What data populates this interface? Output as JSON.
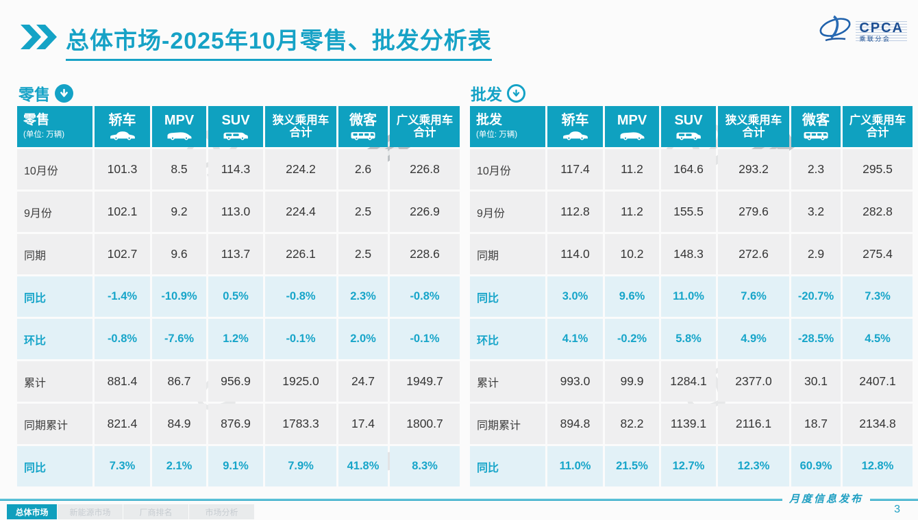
{
  "page": {
    "title": "总体市场-2025年10月零售、批发分析表"
  },
  "logo": {
    "name": "CPCA",
    "subtitle": "乘联分会",
    "emblem": "cpca-swirl-icon"
  },
  "colors": {
    "accent": "#14a2c6",
    "header_bg": "#0fa1c0",
    "percent_bg": "#e2f1f7",
    "row_bg": "#efeff0",
    "brand_blue": "#1d4f93"
  },
  "tables": [
    {
      "section_title": "零售",
      "section_icon": "circle-down-arrow-icon",
      "corner": {
        "title": "零售",
        "unit": "(单位: 万辆)"
      },
      "columns": [
        {
          "label": "轿车",
          "label2": "",
          "icon": "sedan-icon"
        },
        {
          "label": "MPV",
          "label2": "",
          "icon": "mpv-icon"
        },
        {
          "label": "SUV",
          "label2": "",
          "icon": "suv-icon"
        },
        {
          "label": "狭义乘用车",
          "label2": "合计",
          "icon": ""
        },
        {
          "label": "微客",
          "label2": "",
          "icon": "microvan-icon"
        },
        {
          "label": "广义乘用车",
          "label2": "合计",
          "icon": ""
        }
      ],
      "rows": [
        {
          "label": "10月份",
          "type": "normal",
          "cells": [
            "101.3",
            "8.5",
            "114.3",
            "224.2",
            "2.6",
            "226.8"
          ]
        },
        {
          "label": "9月份",
          "type": "normal",
          "cells": [
            "102.1",
            "9.2",
            "113.0",
            "224.4",
            "2.5",
            "226.9"
          ]
        },
        {
          "label": "同期",
          "type": "normal",
          "cells": [
            "102.7",
            "9.6",
            "113.7",
            "226.1",
            "2.5",
            "228.6"
          ]
        },
        {
          "label": "同比",
          "type": "percent",
          "cells": [
            "-1.4%",
            "-10.9%",
            "0.5%",
            "-0.8%",
            "2.3%",
            "-0.8%"
          ]
        },
        {
          "label": "环比",
          "type": "percent",
          "cells": [
            "-0.8%",
            "-7.6%",
            "1.2%",
            "-0.1%",
            "2.0%",
            "-0.1%"
          ]
        },
        {
          "label": "累计",
          "type": "normal",
          "cells": [
            "881.4",
            "86.7",
            "956.9",
            "1925.0",
            "24.7",
            "1949.7"
          ]
        },
        {
          "label": "同期累计",
          "type": "normal",
          "cells": [
            "821.4",
            "84.9",
            "876.9",
            "1783.3",
            "17.4",
            "1800.7"
          ]
        },
        {
          "label": "同比",
          "type": "percent",
          "cells": [
            "7.3%",
            "2.1%",
            "9.1%",
            "7.9%",
            "41.8%",
            "8.3%"
          ]
        }
      ]
    },
    {
      "section_title": "批发",
      "section_icon": "circle-down-arrow-icon",
      "corner": {
        "title": "批发",
        "unit": "(单位: 万辆)"
      },
      "columns": [
        {
          "label": "轿车",
          "label2": "",
          "icon": "sedan-icon"
        },
        {
          "label": "MPV",
          "label2": "",
          "icon": "mpv-icon"
        },
        {
          "label": "SUV",
          "label2": "",
          "icon": "suv-icon"
        },
        {
          "label": "狭义乘用车",
          "label2": "合计",
          "icon": ""
        },
        {
          "label": "微客",
          "label2": "",
          "icon": "microvan-icon"
        },
        {
          "label": "广义乘用车",
          "label2": "合计",
          "icon": ""
        }
      ],
      "rows": [
        {
          "label": "10月份",
          "type": "normal",
          "cells": [
            "117.4",
            "11.2",
            "164.6",
            "293.2",
            "2.3",
            "295.5"
          ]
        },
        {
          "label": "9月份",
          "type": "normal",
          "cells": [
            "112.8",
            "11.2",
            "155.5",
            "279.6",
            "3.2",
            "282.8"
          ]
        },
        {
          "label": "同期",
          "type": "normal",
          "cells": [
            "114.0",
            "10.2",
            "148.3",
            "272.6",
            "2.9",
            "275.4"
          ]
        },
        {
          "label": "同比",
          "type": "percent",
          "cells": [
            "3.0%",
            "9.6%",
            "11.0%",
            "7.6%",
            "-20.7%",
            "7.3%"
          ]
        },
        {
          "label": "环比",
          "type": "percent",
          "cells": [
            "4.1%",
            "-0.2%",
            "5.8%",
            "4.9%",
            "-28.5%",
            "4.5%"
          ]
        },
        {
          "label": "累计",
          "type": "normal",
          "cells": [
            "993.0",
            "99.9",
            "1284.1",
            "2377.0",
            "30.1",
            "2407.1"
          ]
        },
        {
          "label": "同期累计",
          "type": "normal",
          "cells": [
            "894.8",
            "82.2",
            "1139.1",
            "2116.1",
            "18.7",
            "2134.8"
          ]
        },
        {
          "label": "同比",
          "type": "percent",
          "cells": [
            "11.0%",
            "21.5%",
            "12.7%",
            "12.3%",
            "60.9%",
            "12.8%"
          ]
        }
      ]
    }
  ],
  "footer": {
    "tabs": [
      {
        "label": "总体市场",
        "active": true
      },
      {
        "label": "新能源市场",
        "active": false
      },
      {
        "label": "厂商排名",
        "active": false
      },
      {
        "label": "市场分析",
        "active": false
      }
    ],
    "release_label": "月度信息发布",
    "page_number": "3"
  }
}
